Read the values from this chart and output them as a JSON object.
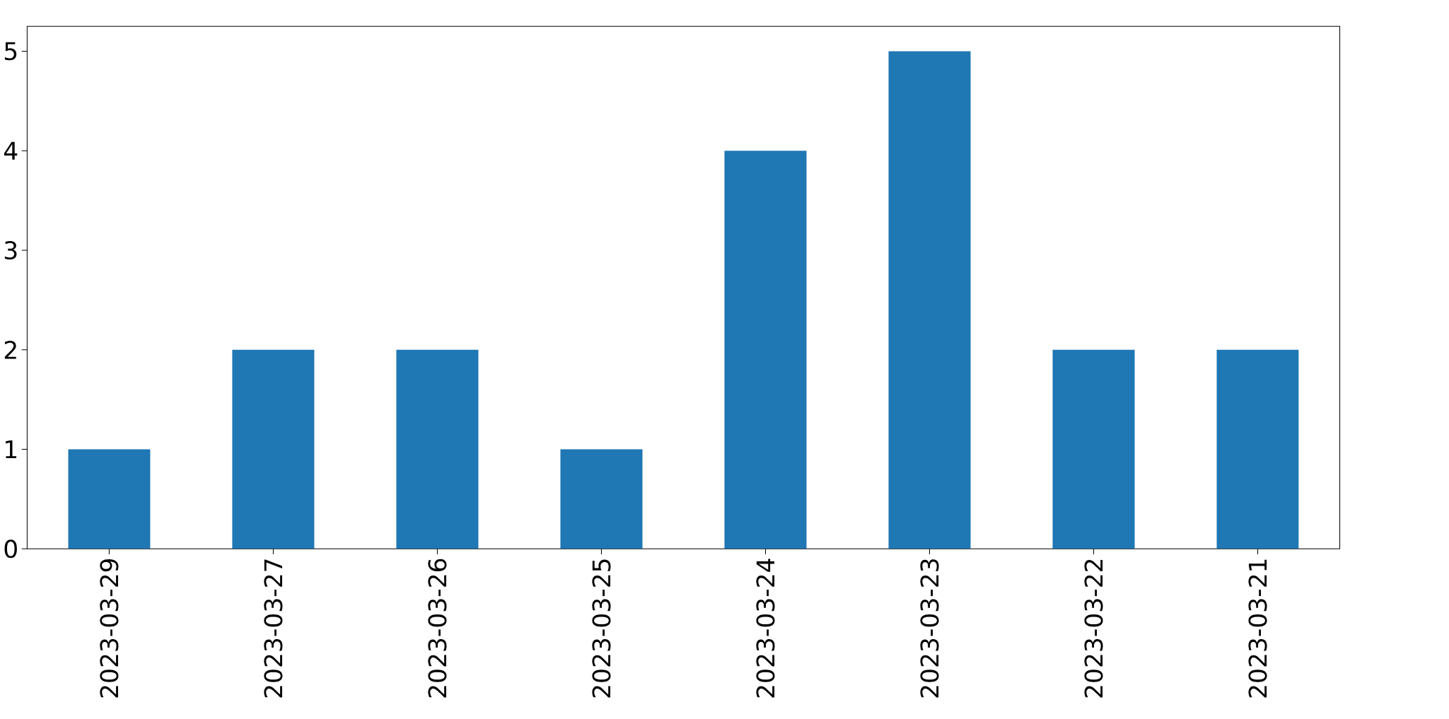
{
  "chart_data": {
    "type": "bar",
    "categories": [
      "2023-03-29",
      "2023-03-27",
      "2023-03-26",
      "2023-03-25",
      "2023-03-24",
      "2023-03-23",
      "2023-03-22",
      "2023-03-21"
    ],
    "values": [
      1,
      2,
      2,
      1,
      4,
      5,
      2,
      2
    ],
    "color": "#1f77b4",
    "ylim": [
      0,
      5.25
    ],
    "yticks": [
      0,
      1,
      2,
      3,
      4,
      5
    ]
  }
}
